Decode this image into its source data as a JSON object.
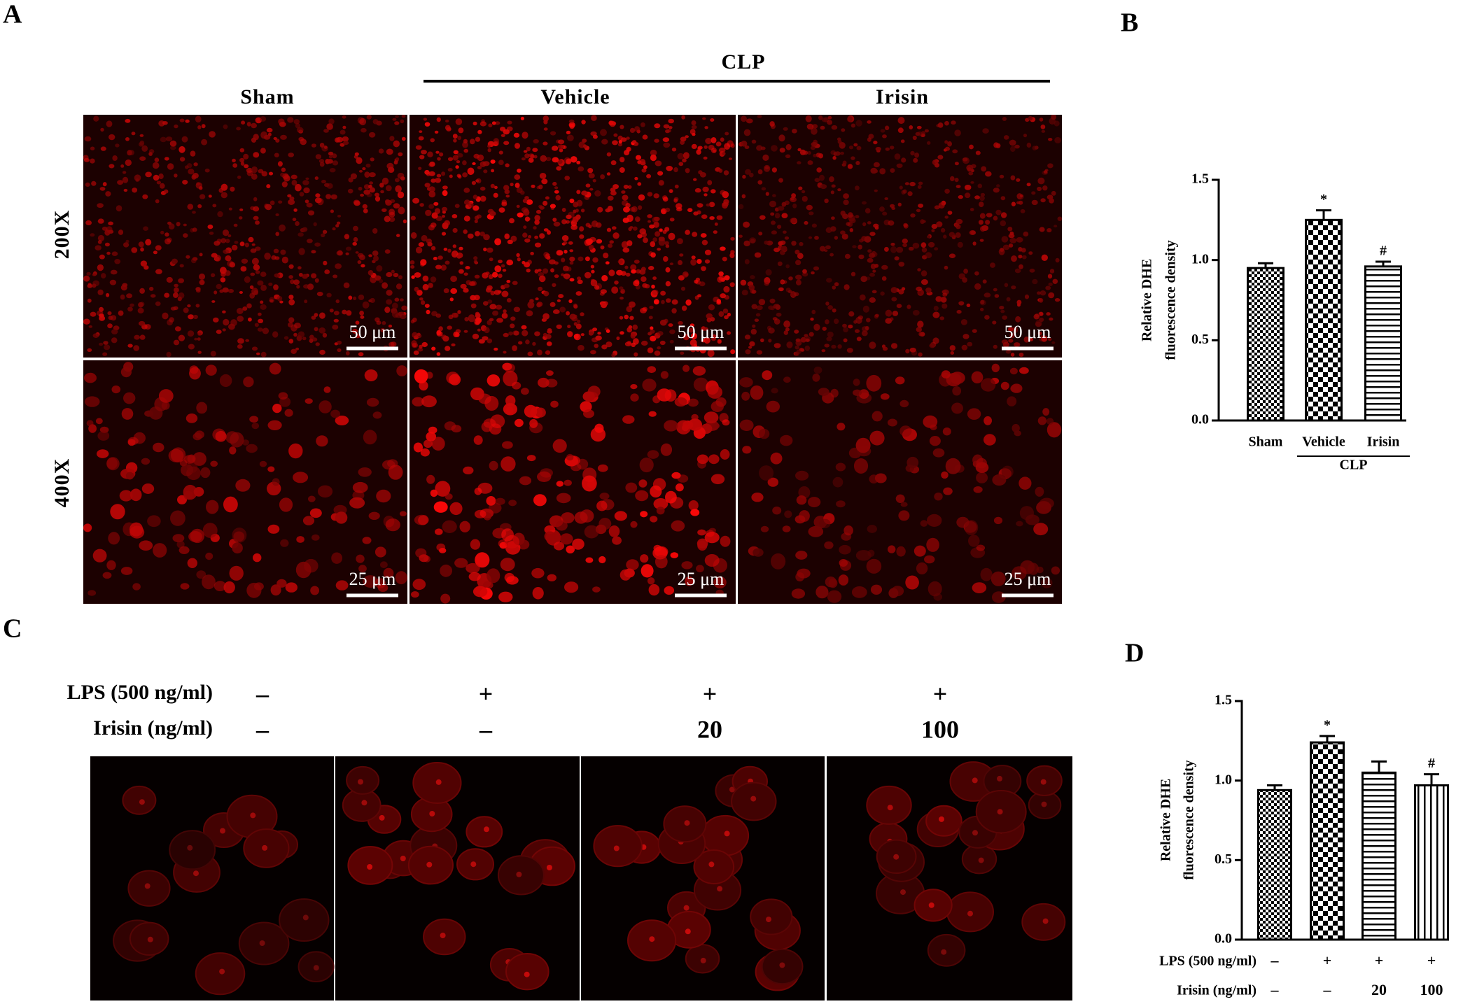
{
  "panel_a": {
    "label": "A",
    "group_label": "CLP",
    "columns": [
      "Sham",
      "Vehicle",
      "Irisin"
    ],
    "rows": [
      "200X",
      "400X"
    ],
    "scale_bars": [
      "50 μm",
      "50 μm",
      "50 μm",
      "25 μm",
      "25 μm",
      "25 μm"
    ]
  },
  "panel_c": {
    "label": "C",
    "conditions": [
      {
        "name": "LPS (500 ng/ml)",
        "values": [
          "–",
          "+",
          "+",
          "+"
        ]
      },
      {
        "name": "Irisin (ng/ml)",
        "values": [
          "–",
          "–",
          "20",
          "100"
        ]
      }
    ]
  },
  "chart_data": [
    {
      "type": "bar",
      "label": "B",
      "y_label": [
        "Relative DHE",
        "fluorescence density"
      ],
      "categories": [
        "Sham",
        "Vehicle",
        "Irisin"
      ],
      "group_label": "CLP",
      "values": [
        0.95,
        1.25,
        0.96
      ],
      "errors": [
        0.03,
        0.06,
        0.03
      ],
      "significance": [
        null,
        "*",
        "#"
      ],
      "patterns": [
        "checker",
        "checker-large",
        "horizontal"
      ],
      "ylim": [
        0,
        1.5
      ],
      "yticks": [
        {
          "value": 0,
          "label": "0.0"
        },
        {
          "value": 0.5,
          "label": "0.5"
        },
        {
          "value": 1,
          "label": "1.0"
        },
        {
          "value": 1.5,
          "label": "1.5"
        }
      ]
    },
    {
      "type": "bar",
      "label": "D",
      "y_label": [
        "Relative DHE",
        "fluorescence density"
      ],
      "condition_rows": [
        {
          "name": "LPS (500 ng/ml)",
          "labels": [
            "–",
            "+",
            "+",
            "+"
          ]
        },
        {
          "name": "Irisin (ng/ml)",
          "labels": [
            "–",
            "–",
            "20",
            "100"
          ]
        }
      ],
      "values": [
        0.94,
        1.24,
        1.05,
        0.97
      ],
      "errors": [
        0.03,
        0.04,
        0.07,
        0.07
      ],
      "significance": [
        null,
        "*",
        null,
        "#"
      ],
      "patterns": [
        "checker",
        "checker-large",
        "horizontal",
        "vertical"
      ],
      "ylim": [
        0,
        1.5
      ],
      "yticks": [
        {
          "value": 0,
          "label": "0.0"
        },
        {
          "value": 0.5,
          "label": "0.5"
        },
        {
          "value": 1,
          "label": "1.0"
        },
        {
          "value": 1.5,
          "label": "1.5"
        }
      ]
    }
  ]
}
